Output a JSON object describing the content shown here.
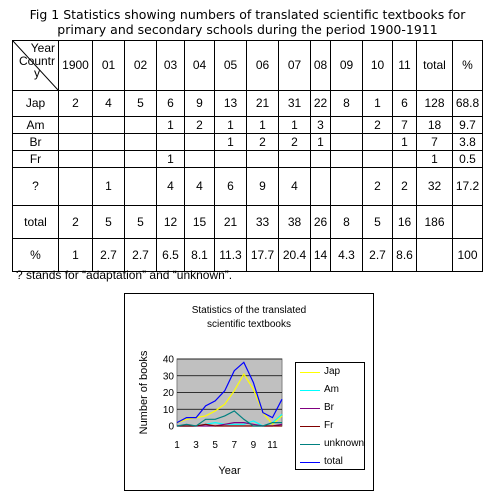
{
  "title_line1": "Fig 1 Statistics showing numbers of translated scientific textbooks for",
  "title_line2": "primary and secondary schools during the period 1900-1911",
  "table": {
    "corner_year": "Year",
    "corner_country": "Country",
    "year_headers": [
      "1900",
      "01",
      "02",
      "03",
      "04",
      "05",
      "06",
      "07",
      "08",
      "09",
      "10",
      "11",
      "total",
      "%"
    ],
    "rows": [
      {
        "label": "Jap",
        "cells": [
          "2",
          "4",
          "5",
          "6",
          "9",
          "13",
          "21",
          "31",
          "22",
          "8",
          "1",
          "6",
          "128",
          "68.8"
        ]
      },
      {
        "label": "Am",
        "cells": [
          "",
          "",
          "",
          "1",
          "2",
          "1",
          "1",
          "1",
          "3",
          "",
          "2",
          "7",
          "18",
          "9.7"
        ]
      },
      {
        "label": "Br",
        "cells": [
          "",
          "",
          "",
          "",
          "",
          "1",
          "2",
          "2",
          "1",
          "",
          "",
          "1",
          "7",
          "3.8"
        ]
      },
      {
        "label": "Fr",
        "cells": [
          "",
          "",
          "",
          "1",
          "",
          "",
          "",
          "",
          "",
          "",
          "",
          "",
          "1",
          "0.5"
        ]
      },
      {
        "label": "?",
        "cells": [
          "",
          "1",
          "",
          "4",
          "4",
          "6",
          "9",
          "4",
          "",
          "",
          "2",
          "2",
          "32",
          "17.2"
        ]
      },
      {
        "label": "total",
        "cells": [
          "2",
          "5",
          "5",
          "12",
          "15",
          "21",
          "33",
          "38",
          "26",
          "8",
          "5",
          "16",
          "186",
          ""
        ]
      },
      {
        "label": "%",
        "cells": [
          "1",
          "2.7",
          "2.7",
          "6.5",
          "8.1",
          "11.3",
          "17.7",
          "20.4",
          "14",
          "4.3",
          "2.7",
          "8.6",
          "",
          "100"
        ]
      }
    ]
  },
  "note": "? stands for “adaptation” and “unknown”.",
  "chart_data": {
    "type": "line",
    "title": "Statistics of the translated scientific textbooks",
    "xlabel": "Year",
    "ylabel": "Number of books",
    "x": [
      1,
      2,
      3,
      4,
      5,
      6,
      7,
      8,
      9,
      10,
      11,
      12
    ],
    "x_tick_labels": [
      "1",
      "3",
      "5",
      "7",
      "9",
      "11"
    ],
    "y_ticks": [
      "0",
      "10",
      "20",
      "30",
      "40"
    ],
    "ylim": [
      0,
      40
    ],
    "grid": true,
    "legend_position": "right",
    "plot_background": "#c0c0c0",
    "series": [
      {
        "name": "Jap",
        "color": "#ffff00",
        "values": [
          2,
          4,
          5,
          6,
          9,
          13,
          21,
          31,
          22,
          8,
          1,
          6
        ]
      },
      {
        "name": "Am",
        "color": "#00ffff",
        "values": [
          0,
          0,
          0,
          1,
          2,
          1,
          1,
          1,
          3,
          0,
          2,
          7
        ]
      },
      {
        "name": "Br",
        "color": "#800080",
        "values": [
          0,
          0,
          0,
          0,
          0,
          1,
          2,
          2,
          1,
          0,
          0,
          1
        ]
      },
      {
        "name": "Fr",
        "color": "#800000",
        "values": [
          0,
          0,
          0,
          1,
          0,
          0,
          0,
          0,
          0,
          0,
          0,
          0
        ]
      },
      {
        "name": "unknown",
        "color": "#008080",
        "values": [
          0,
          1,
          0,
          4,
          4,
          6,
          9,
          4,
          0,
          0,
          2,
          2
        ]
      },
      {
        "name": "total",
        "color": "#0000ff",
        "values": [
          2,
          5,
          5,
          12,
          15,
          21,
          33,
          38,
          26,
          8,
          5,
          16
        ]
      }
    ]
  }
}
